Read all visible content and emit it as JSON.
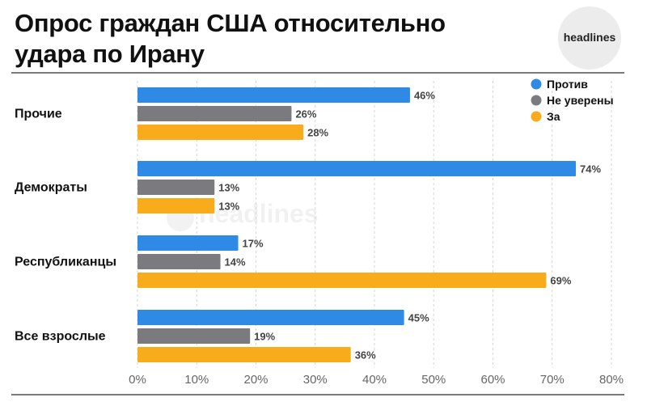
{
  "header": {
    "title_line1": "Опрос граждан США относительно",
    "title_line2": "удара по Ирану",
    "logo_text": "headlines"
  },
  "watermark": {
    "text": "headlines"
  },
  "colors": {
    "protiv": "#2f8ae5",
    "ne_uvereny": "#7b7b7f",
    "za": "#f8ab1b",
    "grid": "#d6d6d6"
  },
  "chart_data": {
    "type": "bar",
    "orientation": "horizontal",
    "title": "Опрос граждан США относительно удара по Ирану",
    "categories": [
      "Прочие",
      "Демократы",
      "Республиканцы",
      "Все взрослые"
    ],
    "series": [
      {
        "name": "Против",
        "values": [
          46,
          74,
          17,
          45
        ],
        "color": "#2f8ae5",
        "labels": [
          "46%",
          "74%",
          "17%",
          "45%"
        ]
      },
      {
        "name": "Не уверены",
        "values": [
          26,
          13,
          14,
          19
        ],
        "color": "#7b7b7f",
        "labels": [
          "26%",
          "13%",
          "14%",
          "19%"
        ]
      },
      {
        "name": "За",
        "values": [
          28,
          13,
          69,
          36
        ],
        "color": "#f8ab1b",
        "labels": [
          "28%",
          "13%",
          "69%",
          "36%"
        ]
      }
    ],
    "xlim": [
      0,
      80
    ],
    "xticks": [
      0,
      10,
      20,
      30,
      40,
      50,
      60,
      70,
      80
    ],
    "xtick_labels": [
      "0%",
      "10%",
      "20%",
      "30%",
      "40%",
      "50%",
      "60%",
      "70%",
      "80%"
    ],
    "grid": "vertical dashed",
    "legend": "top-right"
  }
}
